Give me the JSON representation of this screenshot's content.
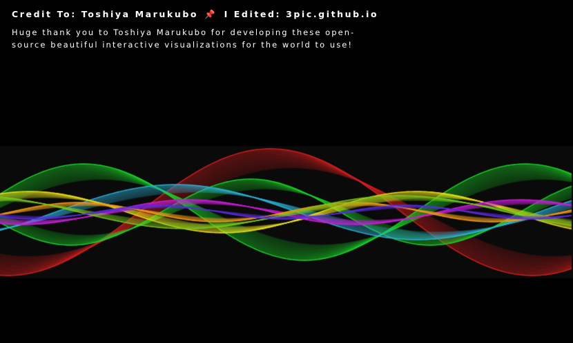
{
  "credit": {
    "prefix": "Credit To: Toshiya Marukubo",
    "pin_icon": "📌",
    "suffix": "I Edited: 3pic.github.io",
    "thanks": "Huge thank you to Toshiya Marukubo for developing these open-source beautiful interactive visualizations for the world to use!"
  },
  "visual": {
    "background": "#000000",
    "band_color": "#0a0a0a",
    "wave_colors": [
      "#d42020",
      "#1ed42a",
      "#2fb2d6",
      "#f0e21e",
      "#c51fd6",
      "#f09a1a",
      "#7ac81e",
      "#5a2ce0"
    ]
  }
}
